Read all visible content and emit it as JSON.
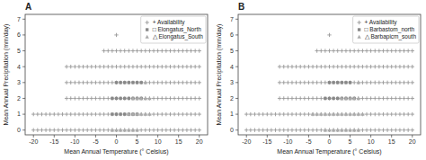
{
  "chart_data": [
    {
      "type": "scatter",
      "title": "A",
      "x_label": "Mean Annual Temperature (° Celsius)",
      "y_label": "Mean Annual Precipitation (mm/day)",
      "xlim": [
        -22,
        22
      ],
      "ylim": [
        -0.3,
        7.3
      ],
      "xticks": [
        -20,
        -15,
        -10,
        -5,
        0,
        5,
        10,
        15,
        20
      ],
      "yticks": [
        0,
        1,
        2,
        3,
        4,
        5,
        6,
        7
      ],
      "legend": "upper right",
      "series": [
        {
          "name": "+ Availability",
          "color": "#999999",
          "marker": "plus",
          "x": [
            -20,
            -19,
            -18,
            -17,
            -16,
            -15,
            -14,
            -13,
            -12,
            -11,
            -10,
            -9,
            -8,
            -7,
            -6,
            -5,
            -4,
            -3,
            -2,
            -1,
            0,
            1,
            2,
            3,
            4,
            5,
            6,
            7,
            8,
            9,
            10,
            11,
            12,
            13,
            14,
            15,
            16,
            17,
            18,
            19,
            20,
            -20,
            -19,
            -18,
            -17,
            -16,
            -15,
            -14,
            -13,
            -12,
            -11,
            -10,
            -9,
            -8,
            -7,
            -6,
            -5,
            -4,
            -3,
            -2,
            -1,
            0,
            1,
            2,
            3,
            4,
            5,
            6,
            7,
            8,
            9,
            10,
            11,
            12,
            13,
            14,
            15,
            16,
            17,
            18,
            19,
            20,
            -12,
            -11,
            -10,
            -9,
            -8,
            -7,
            -6,
            -5,
            -4,
            -3,
            -2,
            -1,
            0,
            1,
            2,
            3,
            4,
            5,
            6,
            7,
            8,
            9,
            10,
            11,
            12,
            13,
            14,
            15,
            16,
            17,
            18,
            19,
            20,
            -12,
            -11,
            -10,
            -9,
            -8,
            -7,
            -6,
            -5,
            -4,
            -3,
            -2,
            -1,
            0,
            1,
            2,
            3,
            4,
            5,
            6,
            7,
            8,
            9,
            10,
            11,
            12,
            13,
            14,
            15,
            16,
            17,
            18,
            19,
            20,
            -12,
            -11,
            -10,
            -9,
            -8,
            -7,
            -6,
            -5,
            -4,
            -3,
            -2,
            -1,
            0,
            1,
            2,
            3,
            4,
            5,
            6,
            7,
            8,
            9,
            10,
            11,
            12,
            13,
            14,
            15,
            16,
            17,
            18,
            19,
            20,
            -3,
            -2,
            -1,
            0,
            1,
            2,
            3,
            4,
            5,
            6,
            7,
            8,
            9,
            10,
            11,
            12,
            13,
            14,
            15,
            16,
            17,
            18,
            19,
            20,
            0
          ],
          "values": [
            0,
            0,
            0,
            0,
            0,
            0,
            0,
            0,
            0,
            0,
            0,
            0,
            0,
            0,
            0,
            0,
            0,
            0,
            0,
            0,
            0,
            0,
            0,
            0,
            0,
            0,
            0,
            0,
            0,
            0,
            0,
            0,
            0,
            0,
            0,
            0,
            0,
            0,
            0,
            0,
            0,
            1,
            1,
            1,
            1,
            1,
            1,
            1,
            1,
            1,
            1,
            1,
            1,
            1,
            1,
            1,
            1,
            1,
            1,
            1,
            1,
            1,
            1,
            1,
            1,
            1,
            1,
            1,
            1,
            1,
            1,
            1,
            1,
            1,
            1,
            1,
            1,
            1,
            1,
            1,
            1,
            1,
            2,
            2,
            2,
            2,
            2,
            2,
            2,
            2,
            2,
            2,
            2,
            2,
            2,
            2,
            2,
            2,
            2,
            2,
            2,
            2,
            2,
            2,
            2,
            2,
            2,
            2,
            2,
            2,
            2,
            2,
            2,
            2,
            2,
            3,
            3,
            3,
            3,
            3,
            3,
            3,
            3,
            3,
            3,
            3,
            3,
            3,
            3,
            3,
            3,
            3,
            3,
            3,
            3,
            3,
            3,
            3,
            3,
            3,
            3,
            3,
            3,
            3,
            3,
            3,
            3,
            3,
            4,
            4,
            4,
            4,
            4,
            4,
            4,
            4,
            4,
            4,
            4,
            4,
            4,
            4,
            4,
            4,
            4,
            4,
            4,
            4,
            4,
            4,
            4,
            4,
            4,
            4,
            4,
            4,
            4,
            4,
            4,
            4,
            4,
            5,
            5,
            5,
            5,
            5,
            5,
            5,
            5,
            5,
            5,
            5,
            5,
            5,
            5,
            5,
            5,
            5,
            5,
            5,
            5,
            5,
            5,
            5,
            5,
            6
          ]
        },
        {
          "name": "□ Elongatus_North",
          "color": "#888888",
          "marker": "square",
          "x": [
            -1,
            0,
            1,
            2,
            3,
            4,
            5,
            -1,
            0,
            1,
            2,
            3,
            4,
            5,
            6,
            0,
            1,
            2,
            3,
            4,
            5,
            6
          ],
          "values": [
            1,
            1,
            1,
            1,
            1,
            1,
            1,
            2,
            2,
            2,
            2,
            2,
            2,
            2,
            2,
            3,
            3,
            3,
            3,
            3,
            3,
            3
          ]
        },
        {
          "name": "△ Elongatus_South",
          "color": "#aaaaaa",
          "marker": "triangle",
          "x": [
            -1,
            0,
            1,
            2,
            3,
            4,
            5,
            3,
            4,
            5,
            6,
            7,
            8,
            4,
            5,
            6,
            7,
            8,
            7
          ],
          "values": [
            0,
            0,
            0,
            0,
            0,
            0,
            0,
            1,
            1,
            1,
            1,
            1,
            1,
            2,
            2,
            2,
            2,
            2,
            3
          ]
        }
      ]
    },
    {
      "type": "scatter",
      "title": "B",
      "x_label": "Mean Annual Temperature (° Celsius)",
      "y_label": "Mean Annual Precipitation (mm/day)",
      "xlim": [
        -22,
        22
      ],
      "ylim": [
        -0.3,
        7.3
      ],
      "xticks": [
        -20,
        -15,
        -10,
        -5,
        0,
        5,
        10,
        15,
        20
      ],
      "yticks": [
        0,
        1,
        2,
        3,
        4,
        5,
        6,
        7
      ],
      "legend": "upper right",
      "series": [
        {
          "name": "+ Availability",
          "color": "#999999",
          "marker": "plus",
          "x": [
            -20,
            -19,
            -18,
            -17,
            -16,
            -15,
            -14,
            -13,
            -12,
            -11,
            -10,
            -9,
            -8,
            -7,
            -6,
            -5,
            -4,
            -3,
            -2,
            -1,
            0,
            1,
            2,
            3,
            4,
            5,
            6,
            7,
            8,
            9,
            10,
            11,
            12,
            13,
            14,
            15,
            16,
            17,
            18,
            19,
            20,
            -20,
            -19,
            -18,
            -17,
            -16,
            -15,
            -14,
            -13,
            -12,
            -11,
            -10,
            -9,
            -8,
            -7,
            -6,
            -5,
            -4,
            -3,
            -2,
            -1,
            0,
            1,
            2,
            3,
            4,
            5,
            6,
            7,
            8,
            9,
            10,
            11,
            12,
            13,
            14,
            15,
            16,
            17,
            18,
            19,
            20,
            -12,
            -11,
            -10,
            -9,
            -8,
            -7,
            -6,
            -5,
            -4,
            -3,
            -2,
            -1,
            0,
            1,
            2,
            3,
            4,
            5,
            6,
            7,
            8,
            9,
            10,
            11,
            12,
            13,
            14,
            15,
            16,
            17,
            18,
            19,
            20,
            -12,
            -11,
            -10,
            -9,
            -8,
            -7,
            -6,
            -5,
            -4,
            -3,
            -2,
            -1,
            0,
            1,
            2,
            3,
            4,
            5,
            6,
            7,
            8,
            9,
            10,
            11,
            12,
            13,
            14,
            15,
            16,
            17,
            18,
            19,
            20,
            -12,
            -11,
            -10,
            -9,
            -8,
            -7,
            -6,
            -5,
            -4,
            -3,
            -2,
            -1,
            0,
            1,
            2,
            3,
            4,
            5,
            6,
            7,
            8,
            9,
            10,
            11,
            12,
            13,
            14,
            15,
            16,
            17,
            18,
            19,
            20,
            -3,
            -2,
            -1,
            0,
            1,
            2,
            3,
            4,
            5,
            6,
            7,
            8,
            9,
            10,
            11,
            12,
            13,
            14,
            15,
            16,
            17,
            18,
            19,
            20,
            0
          ],
          "values": [
            0,
            0,
            0,
            0,
            0,
            0,
            0,
            0,
            0,
            0,
            0,
            0,
            0,
            0,
            0,
            0,
            0,
            0,
            0,
            0,
            0,
            0,
            0,
            0,
            0,
            0,
            0,
            0,
            0,
            0,
            0,
            0,
            0,
            0,
            0,
            0,
            0,
            0,
            0,
            0,
            0,
            1,
            1,
            1,
            1,
            1,
            1,
            1,
            1,
            1,
            1,
            1,
            1,
            1,
            1,
            1,
            1,
            1,
            1,
            1,
            1,
            1,
            1,
            1,
            1,
            1,
            1,
            1,
            1,
            1,
            1,
            1,
            1,
            1,
            1,
            1,
            1,
            1,
            1,
            1,
            1,
            1,
            2,
            2,
            2,
            2,
            2,
            2,
            2,
            2,
            2,
            2,
            2,
            2,
            2,
            2,
            2,
            2,
            2,
            2,
            2,
            2,
            2,
            2,
            2,
            2,
            2,
            2,
            2,
            2,
            2,
            2,
            2,
            2,
            2,
            3,
            3,
            3,
            3,
            3,
            3,
            3,
            3,
            3,
            3,
            3,
            3,
            3,
            3,
            3,
            3,
            3,
            3,
            3,
            3,
            3,
            3,
            3,
            3,
            3,
            3,
            3,
            3,
            3,
            3,
            3,
            3,
            3,
            4,
            4,
            4,
            4,
            4,
            4,
            4,
            4,
            4,
            4,
            4,
            4,
            4,
            4,
            4,
            4,
            4,
            4,
            4,
            4,
            4,
            4,
            4,
            4,
            4,
            4,
            4,
            4,
            4,
            4,
            4,
            4,
            4,
            5,
            5,
            5,
            5,
            5,
            5,
            5,
            5,
            5,
            5,
            5,
            5,
            5,
            5,
            5,
            5,
            5,
            5,
            5,
            5,
            5,
            5,
            5,
            5,
            6
          ]
        },
        {
          "name": "□ Barbastom_north",
          "color": "#888888",
          "marker": "square",
          "x": [
            -1,
            0,
            1,
            2,
            3,
            4,
            5,
            6,
            0,
            1,
            2,
            3,
            4,
            5
          ],
          "values": [
            2,
            2,
            2,
            2,
            2,
            2,
            2,
            2,
            3,
            3,
            3,
            3,
            3,
            3
          ]
        },
        {
          "name": "△ Barbapicm_south",
          "color": "#aaaaaa",
          "marker": "triangle",
          "x": [
            -1,
            0,
            1,
            2,
            3,
            4,
            5,
            6,
            7,
            -4,
            -3,
            -2,
            -1,
            0,
            1,
            2,
            3,
            4,
            5,
            6,
            7,
            8,
            3,
            4,
            5,
            6,
            7,
            7
          ],
          "values": [
            0,
            0,
            0,
            0,
            0,
            0,
            0,
            0,
            0,
            1,
            1,
            1,
            1,
            1,
            1,
            1,
            1,
            1,
            1,
            1,
            1,
            1,
            2,
            2,
            2,
            2,
            2,
            3
          ]
        }
      ]
    }
  ]
}
